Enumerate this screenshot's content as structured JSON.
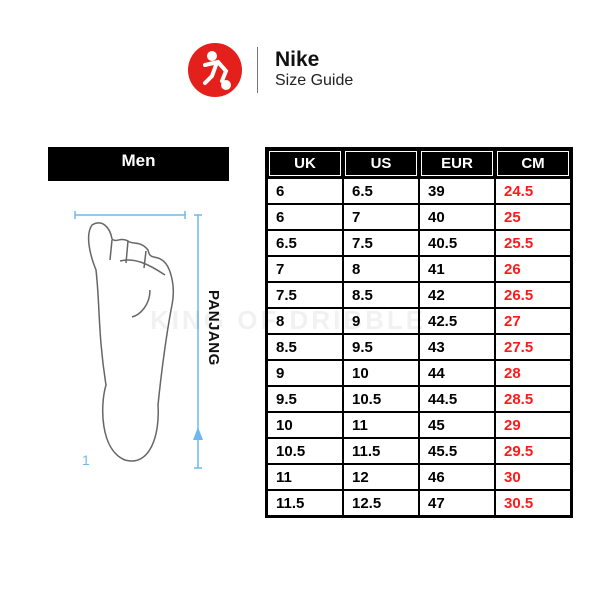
{
  "header": {
    "brand": "Nike",
    "subtitle": "Size Guide",
    "logo_icon": "footballer-logo-icon",
    "logo_color": "#e3201b"
  },
  "section_label": "Men",
  "diagram": {
    "length_label": "PANJANG",
    "step_number": "1",
    "measure_color": "#6fb8ee"
  },
  "watermark": "KING OF DRIBBLE",
  "table": {
    "columns": [
      "UK",
      "US",
      "EUR",
      "CM"
    ],
    "cm_color": "#ff1a1a",
    "rows": [
      [
        "6",
        "6.5",
        "39",
        "24.5"
      ],
      [
        "6",
        "7",
        "40",
        "25"
      ],
      [
        "6.5",
        "7.5",
        "40.5",
        "25.5"
      ],
      [
        "7",
        "8",
        "41",
        "26"
      ],
      [
        "7.5",
        "8.5",
        "42",
        "26.5"
      ],
      [
        "8",
        "9",
        "42.5",
        "27"
      ],
      [
        "8.5",
        "9.5",
        "43",
        "27.5"
      ],
      [
        "9",
        "10",
        "44",
        "28"
      ],
      [
        "9.5",
        "10.5",
        "44.5",
        "28.5"
      ],
      [
        "10",
        "11",
        "45",
        "29"
      ],
      [
        "10.5",
        "11.5",
        "45.5",
        "29.5"
      ],
      [
        "11",
        "12",
        "46",
        "30"
      ],
      [
        "11.5",
        "12.5",
        "47",
        "30.5"
      ]
    ]
  }
}
